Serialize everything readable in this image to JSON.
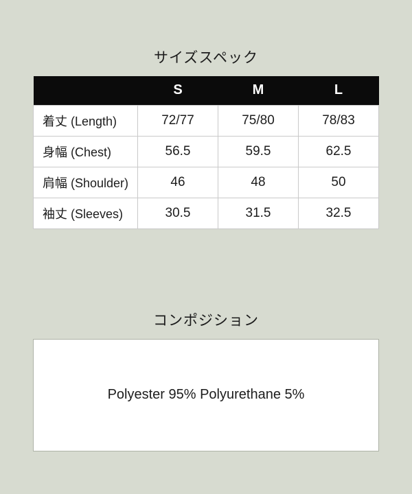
{
  "colors": {
    "page_background": "#d7dbd0",
    "table_header_background": "#0b0b0b",
    "table_header_text": "#ffffff",
    "cell_background": "#ffffff",
    "cell_border": "#c9c9c9",
    "box_border": "#aeb3a7",
    "text": "#1c1c1c"
  },
  "size_section": {
    "title": "サイズスペック",
    "table": {
      "header": [
        "",
        "S",
        "M",
        "L"
      ],
      "rows": [
        {
          "label": "着丈 (Length)",
          "values": [
            "72/77",
            "75/80",
            "78/83"
          ]
        },
        {
          "label": "身幅 (Chest)",
          "values": [
            "56.5",
            "59.5",
            "62.5"
          ]
        },
        {
          "label": "肩幅 (Shoulder)",
          "values": [
            "46",
            "48",
            "50"
          ]
        },
        {
          "label": "袖丈 (Sleeves)",
          "values": [
            "30.5",
            "31.5",
            "32.5"
          ]
        }
      ]
    }
  },
  "composition_section": {
    "title": "コンポジション",
    "text": "Polyester 95% Polyurethane 5%"
  }
}
